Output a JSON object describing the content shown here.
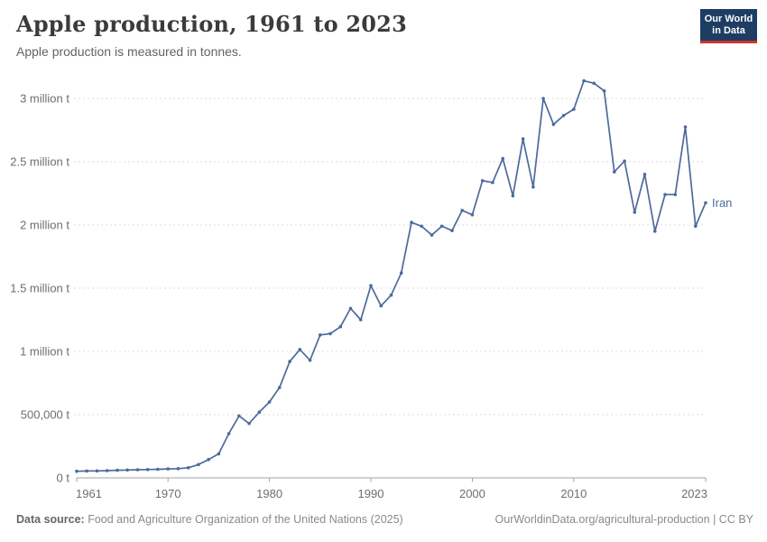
{
  "header": {
    "logo": {
      "line1": "Our World",
      "line2": "in Data"
    }
  },
  "footer": {
    "source_label": "Data source:",
    "source_text": " Food and Agriculture Organization of the United Nations (2025)",
    "url": "OurWorldinData.org/agricultural-production",
    "separator": " | ",
    "license": "CC BY"
  },
  "colors": {
    "line": "#4c6a9c",
    "gridline": "#dcdcdc",
    "axis": "#a3a3a3",
    "tick_label": "#6e6e6e",
    "logo_bg": "#1d3d63",
    "logo_red": "#d0342c"
  },
  "chart_data": {
    "type": "line",
    "title": "Apple production, 1961 to 2023",
    "subtitle": "Apple production is measured in tonnes.",
    "xlabel": "",
    "ylabel": "tonnes",
    "xlim": [
      1961,
      2023
    ],
    "ylim": [
      0,
      3000000
    ],
    "grid": "horizontal-dashed",
    "legend_position": "end-of-line",
    "x_ticks": [
      1961,
      1970,
      1980,
      1990,
      2000,
      2010,
      2023
    ],
    "y_ticks": [
      {
        "value": 0,
        "label": "0 t"
      },
      {
        "value": 500000,
        "label": "500,000 t"
      },
      {
        "value": 1000000,
        "label": "1 million t"
      },
      {
        "value": 1500000,
        "label": "1.5 million t"
      },
      {
        "value": 2000000,
        "label": "2 million t"
      },
      {
        "value": 2500000,
        "label": "2.5 million t"
      },
      {
        "value": 3000000,
        "label": "3 million t"
      }
    ],
    "series": [
      {
        "name": "Iran",
        "color": "#4c6a9c",
        "years": [
          1961,
          1962,
          1963,
          1964,
          1965,
          1966,
          1967,
          1968,
          1969,
          1970,
          1971,
          1972,
          1973,
          1974,
          1975,
          1976,
          1977,
          1978,
          1979,
          1980,
          1981,
          1982,
          1983,
          1984,
          1985,
          1986,
          1987,
          1988,
          1989,
          1990,
          1991,
          1992,
          1993,
          1994,
          1995,
          1996,
          1997,
          1998,
          1999,
          2000,
          2001,
          2002,
          2003,
          2004,
          2005,
          2006,
          2007,
          2008,
          2009,
          2010,
          2011,
          2012,
          2013,
          2014,
          2015,
          2016,
          2017,
          2018,
          2019,
          2020,
          2021,
          2022,
          2023
        ],
        "values": [
          52000,
          54000,
          55000,
          57000,
          60000,
          62000,
          64000,
          66000,
          68000,
          71000,
          73000,
          80000,
          105000,
          145000,
          190000,
          350000,
          490000,
          430000,
          520000,
          600000,
          715000,
          920000,
          1015000,
          930000,
          1130000,
          1140000,
          1195000,
          1340000,
          1250000,
          1520000,
          1360000,
          1445000,
          1620000,
          2020000,
          1990000,
          1920000,
          1990000,
          1955000,
          2115000,
          2080000,
          2350000,
          2335000,
          2525000,
          2230000,
          2680000,
          2300000,
          3000000,
          2795000,
          2865000,
          2915000,
          3140000,
          3120000,
          3060000,
          2420000,
          2505000,
          2100000,
          2400000,
          1950000,
          2240000,
          2240000,
          2775000,
          1990000,
          2175000
        ]
      }
    ]
  }
}
